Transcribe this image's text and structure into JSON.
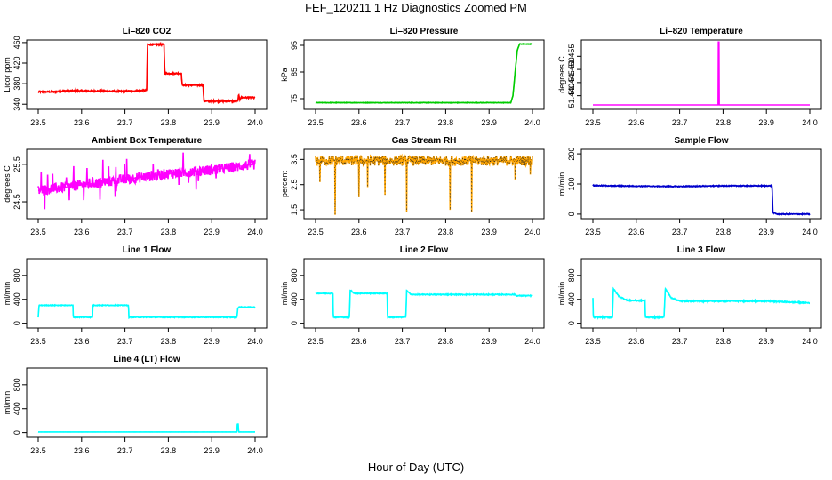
{
  "figure": {
    "title": "FEF_120211  1 Hz Diagnostics Zoomed PM",
    "xlabel": "Hour of Day (UTC)"
  },
  "chart_data": [
    {
      "type": "line",
      "title": "Li–820 CO2",
      "ylabel": "Licor ppm",
      "xlim": [
        23.5,
        24.0
      ],
      "ylim": [
        330,
        465
      ],
      "xticks": [
        "23.5",
        "23.6",
        "23.7",
        "23.8",
        "23.9",
        "24.0"
      ],
      "yticks": [
        "340",
        "380",
        "420",
        "460"
      ],
      "color": "#ff0000",
      "noise": 1.5,
      "series": [
        {
          "x": [
            23.5,
            23.54,
            23.56,
            23.6,
            23.7,
            23.75,
            23.752,
            23.79,
            23.792,
            23.83,
            23.832,
            23.88,
            23.882,
            23.96,
            23.962,
            23.965,
            23.967,
            24.0
          ],
          "y": [
            364,
            364,
            366,
            366,
            365,
            367,
            456,
            456,
            400,
            400,
            377,
            377,
            346,
            346,
            358,
            349,
            353,
            353
          ]
        }
      ]
    },
    {
      "type": "line",
      "title": "Li–820 Pressure",
      "ylabel": "kPa",
      "xlim": [
        23.5,
        24.0
      ],
      "ylim": [
        71,
        97
      ],
      "xticks": [
        "23.5",
        "23.6",
        "23.7",
        "23.8",
        "23.9",
        "24.0"
      ],
      "yticks": [
        "75",
        "85",
        "95"
      ],
      "color": "#00cc00",
      "noise": 0.1,
      "series": [
        {
          "x": [
            23.5,
            23.92,
            23.95,
            23.955,
            23.96,
            23.965,
            23.97,
            24.0
          ],
          "y": [
            73.5,
            73.5,
            73.5,
            76,
            85,
            93,
            95.5,
            95.5
          ]
        }
      ]
    },
    {
      "type": "line",
      "title": "Li–820 Temperature",
      "ylabel": "degrees C",
      "xlim": [
        23.5,
        24.0
      ],
      "ylim": [
        51.4348,
        51.4612
      ],
      "xticks": [
        "23.5",
        "23.6",
        "23.7",
        "23.8",
        "23.9",
        "24.0"
      ],
      "yticks": [
        "51.440",
        "51.445",
        "51.450",
        "51.455"
      ],
      "color": "#ff00ff",
      "noise": 0,
      "series": [
        {
          "x": [
            23.5,
            23.789,
            23.789,
            23.791,
            23.791,
            24.0
          ],
          "y": [
            51.4365,
            51.4365,
            51.4605,
            51.4605,
            51.4365,
            51.4365
          ]
        }
      ]
    },
    {
      "type": "line",
      "title": "Ambient Box Temperature",
      "ylabel": "degrees C",
      "xlim": [
        23.5,
        24.0
      ],
      "ylim": [
        24.05,
        25.9
      ],
      "xticks": [
        "23.5",
        "23.6",
        "23.7",
        "23.8",
        "23.9",
        "24.0"
      ],
      "yticks": [
        "24.5",
        "25.5"
      ],
      "color": "#ff00ff",
      "noise": 0.14,
      "spikes": 22,
      "spike_size": 0.35,
      "series": [
        {
          "x": [
            23.5,
            23.6,
            23.7,
            23.8,
            23.9,
            24.0
          ],
          "y": [
            24.8,
            24.95,
            25.1,
            25.25,
            25.35,
            25.5
          ]
        }
      ]
    },
    {
      "type": "line",
      "title": "Gas Stream RH",
      "ylabel": "percent",
      "xlim": [
        23.5,
        24.0
      ],
      "ylim": [
        1.15,
        3.9
      ],
      "xticks": [
        "23.5",
        "23.6",
        "23.7",
        "23.8",
        "23.9",
        "24.0"
      ],
      "yticks": [
        "1.5",
        "2.5",
        "3.5"
      ],
      "color": "#ffa500",
      "point_color": "#222222",
      "noise": 0.2,
      "dips": [
        {
          "x": 23.51,
          "y": 2.6
        },
        {
          "x": 23.545,
          "y": 1.3
        },
        {
          "x": 23.6,
          "y": 2.0
        },
        {
          "x": 23.62,
          "y": 2.4
        },
        {
          "x": 23.66,
          "y": 2.1
        },
        {
          "x": 23.71,
          "y": 1.4
        },
        {
          "x": 23.81,
          "y": 1.5
        },
        {
          "x": 23.86,
          "y": 1.4
        },
        {
          "x": 23.96,
          "y": 2.7
        },
        {
          "x": 23.995,
          "y": 2.9
        }
      ],
      "series": [
        {
          "x": [
            23.5,
            24.0
          ],
          "y": [
            3.45,
            3.45
          ]
        }
      ]
    },
    {
      "type": "line",
      "title": "Sample Flow",
      "ylabel": "ml/min",
      "xlim": [
        23.5,
        24.0
      ],
      "ylim": [
        -15,
        215
      ],
      "xticks": [
        "23.5",
        "23.6",
        "23.7",
        "23.8",
        "23.9",
        "24.0"
      ],
      "yticks": [
        "0",
        "100",
        "200"
      ],
      "color": "#0000cc",
      "noise": 1.5,
      "series": [
        {
          "x": [
            23.5,
            23.6,
            23.7,
            23.8,
            23.913,
            23.915,
            23.925,
            24.0
          ],
          "y": [
            95,
            93,
            92,
            94,
            94,
            5,
            0,
            0
          ]
        }
      ]
    },
    {
      "type": "line",
      "title": "Line 1 Flow",
      "ylabel": "ml/min",
      "xlim": [
        23.5,
        24.0
      ],
      "ylim": [
        -80,
        1080
      ],
      "xticks": [
        "23.5",
        "23.6",
        "23.7",
        "23.8",
        "23.9",
        "24.0"
      ],
      "yticks": [
        "0",
        "400",
        "800"
      ],
      "color": "#00ffff",
      "noise": 6,
      "series": [
        {
          "x": [
            23.5,
            23.502,
            23.503,
            23.58,
            23.581,
            23.625,
            23.626,
            23.708,
            23.709,
            23.958,
            23.96,
            23.963,
            24.0
          ],
          "y": [
            100,
            300,
            300,
            300,
            100,
            100,
            300,
            300,
            100,
            100,
            250,
            270,
            270
          ]
        }
      ]
    },
    {
      "type": "line",
      "title": "Line 2 Flow",
      "ylabel": "ml/min",
      "xlim": [
        23.5,
        24.0
      ],
      "ylim": [
        -80,
        1080
      ],
      "xticks": [
        "23.5",
        "23.6",
        "23.7",
        "23.8",
        "23.9",
        "24.0"
      ],
      "yticks": [
        "0",
        "400",
        "800"
      ],
      "color": "#00ffff",
      "noise": 8,
      "series": [
        {
          "x": [
            23.5,
            23.54,
            23.541,
            23.578,
            23.58,
            23.59,
            23.665,
            23.666,
            23.708,
            23.71,
            23.72,
            23.96,
            23.962,
            24.0
          ],
          "y": [
            500,
            500,
            100,
            100,
            550,
            500,
            500,
            100,
            100,
            550,
            480,
            480,
            460,
            460
          ]
        }
      ]
    },
    {
      "type": "line",
      "title": "Line 3 Flow",
      "ylabel": "ml/min",
      "xlim": [
        23.5,
        24.0
      ],
      "ylim": [
        -80,
        1080
      ],
      "xticks": [
        "23.5",
        "23.6",
        "23.7",
        "23.8",
        "23.9",
        "24.0"
      ],
      "yticks": [
        "0",
        "400",
        "800"
      ],
      "color": "#00ffff",
      "noise": 10,
      "series": [
        {
          "x": [
            23.5,
            23.501,
            23.503,
            23.545,
            23.547,
            23.56,
            23.58,
            23.62,
            23.621,
            23.664,
            23.667,
            23.68,
            23.7,
            23.9,
            24.0
          ],
          "y": [
            420,
            100,
            100,
            100,
            580,
            450,
            380,
            380,
            100,
            100,
            580,
            430,
            370,
            370,
            340
          ]
        }
      ]
    },
    {
      "type": "line",
      "title": "Line 4 (LT) Flow",
      "ylabel": "ml/min",
      "xlim": [
        23.5,
        24.0
      ],
      "ylim": [
        -80,
        1080
      ],
      "xticks": [
        "23.5",
        "23.6",
        "23.7",
        "23.8",
        "23.9",
        "24.0"
      ],
      "yticks": [
        "0",
        "400",
        "800"
      ],
      "color": "#00ffff",
      "noise": 1,
      "series": [
        {
          "x": [
            23.5,
            23.958,
            23.959,
            23.961,
            23.962,
            24.0
          ],
          "y": [
            10,
            10,
            140,
            140,
            10,
            10
          ]
        }
      ]
    }
  ]
}
